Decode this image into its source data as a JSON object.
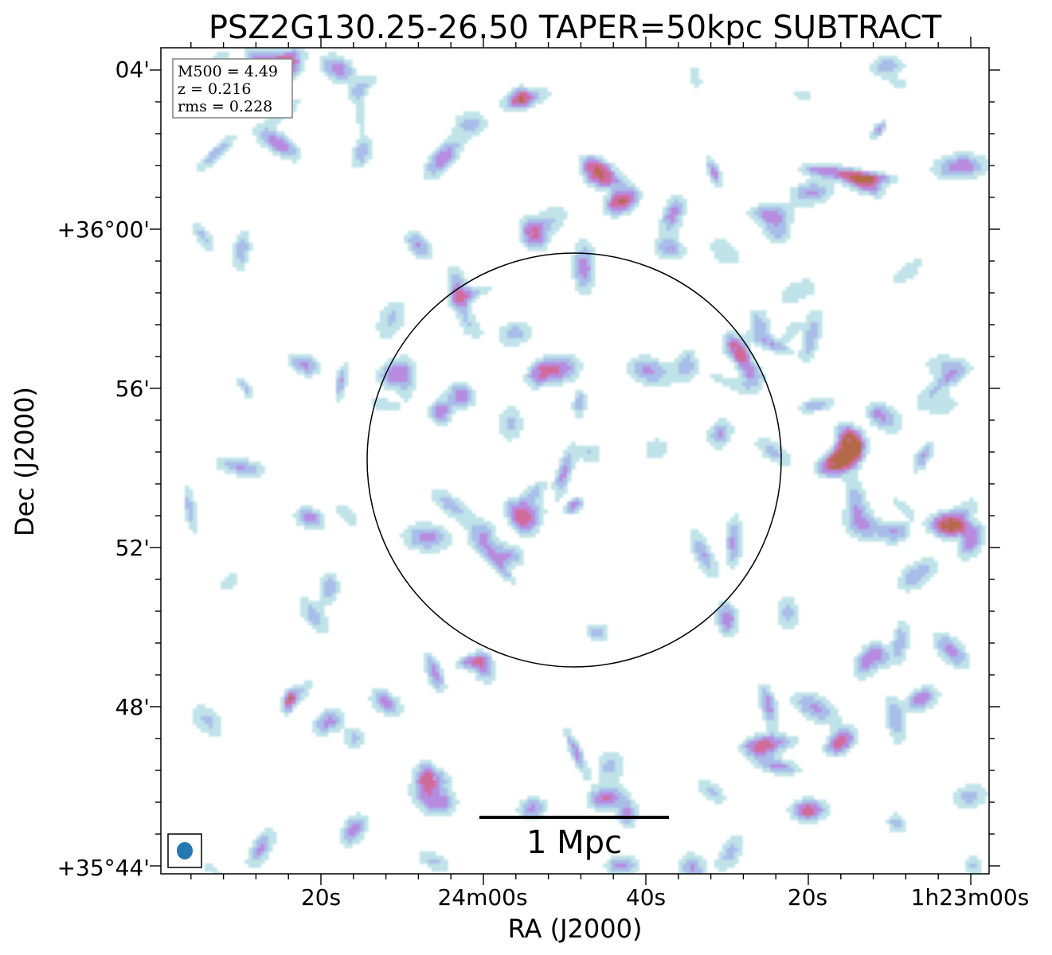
{
  "chart_data": {
    "type": "heatmap",
    "title": "PSZ2G130.25-26.50 TAPER=50kpc SUBTRACT",
    "xlabel": "RA (J2000)",
    "ylabel": "Dec (J2000)",
    "x_ticks": [
      "20s",
      "24m00s",
      "40s",
      "20s",
      "1h23m00s"
    ],
    "y_ticks": [
      "04'",
      "+36°00'",
      "56'",
      "52'",
      "48'",
      "+35°44'"
    ],
    "info_box": [
      "M500 = 4.49",
      "z = 0.216",
      "rms = 0.228"
    ],
    "scale_bar_label": "1 Mpc",
    "circle": "black circle centred on the cluster",
    "beam": "blue ellipse in bottom-left box",
    "colormap": [
      "#ffffff",
      "#bfe3e8",
      "#a9bde9",
      "#b68be0",
      "#d06a9a",
      "#b46a4a"
    ],
    "emission_blobs": [
      {
        "ra_s": 6,
        "dec_m": 1.5,
        "peak": 2.6
      },
      {
        "ra_s": 3,
        "dec_m": 0.7,
        "peak": 2.7
      },
      {
        "ra_s": -3,
        "dec_m": -0.5,
        "peak": 1.4
      },
      {
        "ra_s": -14,
        "dec_m": -2.4,
        "peak": 1.3
      },
      {
        "ra_s": -11,
        "dec_m": -3.0,
        "peak": 1.7
      },
      {
        "ra_s": -23,
        "dec_m": -5.9,
        "peak": 2.3
      },
      {
        "ra_s": -25,
        "dec_m": -5.3,
        "peak": 2.3
      },
      {
        "ra_s": -25,
        "dec_m": -5.6,
        "peak": 2.9
      },
      {
        "ra_s": -37,
        "dec_m": -7.4,
        "peak": 2.0
      },
      {
        "ra_s": -40,
        "dec_m": -7.9,
        "peak": 1.7
      },
      {
        "ra_s": -10,
        "dec_m": -9.8,
        "peak": 1.8
      },
      {
        "ra_s": -27,
        "dec_m": -10.9,
        "peak": 1.6
      },
      {
        "ra_s": -34,
        "dec_m": -11.8,
        "peak": 1.8
      },
      {
        "ra_s": -24,
        "dec_m": -12.9,
        "peak": 2.2
      },
      {
        "ra_s": -14,
        "dec_m": -13.0,
        "peak": 2.2
      },
      {
        "ra_s": -20,
        "dec_m": -14.6,
        "peak": 2.3
      },
      {
        "ra_s": 5,
        "dec_m": -14.3,
        "peak": 2.0
      },
      {
        "ra_s": 3,
        "dec_m": -16.0,
        "peak": 1.6
      },
      {
        "ra_s": 13,
        "dec_m": -17.0,
        "peak": 1.5
      },
      {
        "ra_s": 36,
        "dec_m": -15.1,
        "peak": 1.8
      },
      {
        "ra_s": 42,
        "dec_m": -3.4,
        "peak": 1.6
      },
      {
        "ra_s": 32,
        "dec_m": -11.9,
        "peak": 1.7
      },
      {
        "ra_s": 20,
        "dec_m": -11.0,
        "peak": 1.6
      },
      {
        "ra_s": 17,
        "dec_m": -8.2,
        "peak": 1.5
      },
      {
        "ra_s": 13,
        "dec_m": -3.6,
        "peak": 1.6
      },
      {
        "ra_s": 14,
        "dec_m": -0.1,
        "peak": 1.5
      },
      {
        "ra_s": 28,
        "dec_m": -0.4,
        "peak": 1.5
      },
      {
        "ra_s": 35,
        "dec_m": 1.9,
        "peak": 1.3
      },
      {
        "ra_s": 39,
        "dec_m": -9.0,
        "peak": 1.4
      },
      {
        "ra_s": 26,
        "dec_m": -13.8,
        "peak": 1.3
      },
      {
        "ra_s": -5,
        "dec_m": -3.4,
        "peak": 1.3
      }
    ]
  }
}
